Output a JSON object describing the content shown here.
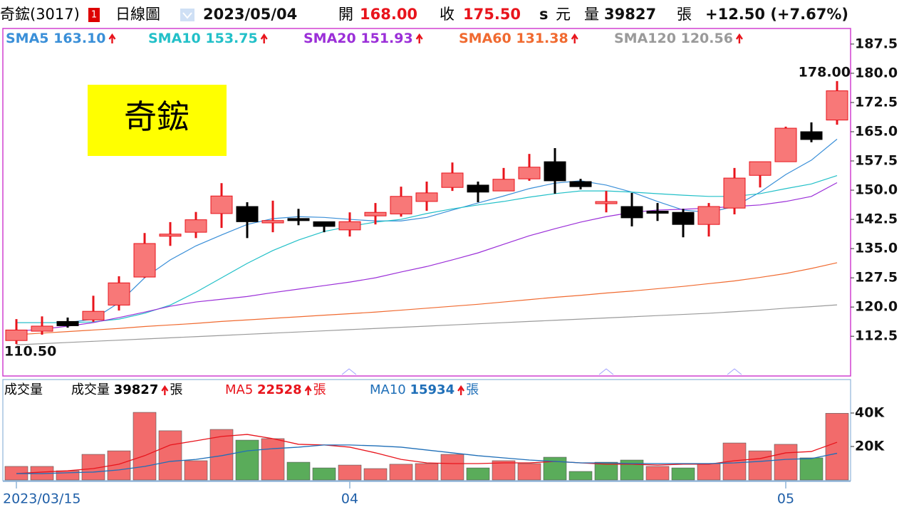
{
  "header": {
    "stock": "奇鋐(3017)",
    "badge": "1",
    "period": "日線圖",
    "date": "2023/05/04",
    "open_label": "開",
    "open": "168.00",
    "close_label": "收",
    "close": "175.50",
    "s": "s",
    "currency": "元",
    "volume_label": "量",
    "volume": "39827",
    "volume_unit": "張",
    "change": "+12.50 (+7.67%)"
  },
  "chart_data": [
    {
      "type": "candlestick",
      "stock_label": "奇鋐",
      "open": [
        111.4,
        113.8,
        116.3,
        116.7,
        120.5,
        127.7,
        138.3,
        139.2,
        144.0,
        145.8,
        141.6,
        142.5,
        141.9,
        139.8,
        143.4,
        143.9,
        147.1,
        150.7,
        151.3,
        149.8,
        152.9,
        157.3,
        152.2,
        146.7,
        145.8,
        144.4,
        144.3,
        141.2,
        145.4,
        153.8,
        157.3,
        165.0,
        168.0
      ],
      "high": [
        116.9,
        117.6,
        117.3,
        122.9,
        127.9,
        139.0,
        141.8,
        144.4,
        151.8,
        146.9,
        147.3,
        145.2,
        141.9,
        144.3,
        146.7,
        150.9,
        152.2,
        157.1,
        152.2,
        155.7,
        159.3,
        160.8,
        152.9,
        149.8,
        149.3,
        146.7,
        145.2,
        146.7,
        155.7,
        157.3,
        166.3,
        167.4,
        178.0
      ],
      "low": [
        110.5,
        112.9,
        114.7,
        116.2,
        119.1,
        127.5,
        135.7,
        137.7,
        140.3,
        137.7,
        139.2,
        141.0,
        139.2,
        138.1,
        141.2,
        143.2,
        144.7,
        149.8,
        146.9,
        149.8,
        152.4,
        149.1,
        150.2,
        144.3,
        140.7,
        142.1,
        137.9,
        138.1,
        143.8,
        150.7,
        157.3,
        162.3,
        166.8
      ],
      "close": [
        114.1,
        115.1,
        115.2,
        118.9,
        126.2,
        136.3,
        138.6,
        142.4,
        148.5,
        141.9,
        142.2,
        142.4,
        140.7,
        141.9,
        144.3,
        148.4,
        149.3,
        154.4,
        149.5,
        152.8,
        155.9,
        152.4,
        150.9,
        146.9,
        142.9,
        144.3,
        141.2,
        145.8,
        153.1,
        157.3,
        165.9,
        163.0,
        175.5
      ],
      "up_color": "#f87878",
      "up_edge": "#e8141c",
      "down_color": "#000000",
      "series": [
        {
          "name": "SMA5",
          "color": "#3a8fd8",
          "last_label": "163.10",
          "values": [
            116.0,
            116.0,
            116.0,
            116.9,
            121.1,
            127.5,
            132.1,
            135.7,
            138.5,
            141.2,
            142.7,
            143.2,
            143.0,
            142.5,
            142.1,
            142.1,
            143.0,
            144.9,
            146.7,
            148.5,
            150.4,
            151.8,
            152.4,
            151.3,
            149.5,
            147.1,
            144.9,
            144.3,
            145.8,
            149.5,
            154.0,
            157.7,
            163.1
          ]
        },
        {
          "name": "SMA10",
          "color": "#22c0c8",
          "last_label": "153.75",
          "values": [
            116.0,
            116.0,
            116.0,
            116.2,
            116.9,
            118.4,
            120.5,
            123.8,
            127.5,
            131.2,
            134.5,
            137.2,
            139.4,
            140.7,
            141.8,
            142.5,
            144.0,
            145.2,
            146.2,
            147.1,
            148.2,
            149.1,
            149.8,
            149.8,
            149.5,
            149.1,
            148.7,
            148.4,
            148.4,
            149.1,
            150.4,
            151.6,
            153.75
          ]
        },
        {
          "name": "SMA20",
          "color": "#9b2fd8",
          "last_label": "151.93",
          "values": [
            113.8,
            114.3,
            115.1,
            116.0,
            117.3,
            118.7,
            120.2,
            121.3,
            122.0,
            122.7,
            123.7,
            124.6,
            125.5,
            126.4,
            127.5,
            129.0,
            130.4,
            132.1,
            133.9,
            136.1,
            138.3,
            140.1,
            141.8,
            143.2,
            144.3,
            144.9,
            145.1,
            145.4,
            145.8,
            146.2,
            147.1,
            148.4,
            151.93
          ]
        },
        {
          "name": "SMA60",
          "color": "#f06a30",
          "last_label": "131.38",
          "values": [
            112.9,
            113.3,
            113.7,
            114.1,
            114.5,
            115.0,
            115.4,
            115.8,
            116.3,
            116.7,
            117.1,
            117.5,
            117.9,
            118.3,
            118.7,
            119.2,
            119.7,
            120.2,
            120.7,
            121.3,
            121.9,
            122.5,
            123.0,
            123.6,
            124.1,
            124.7,
            125.3,
            126.0,
            126.7,
            127.6,
            128.6,
            129.9,
            131.38
          ]
        },
        {
          "name": "SMA120",
          "color": "#9a9a9a",
          "last_label": "120.56",
          "values": [
            110.3,
            110.6,
            110.9,
            111.2,
            111.5,
            111.8,
            112.1,
            112.4,
            112.7,
            113.0,
            113.3,
            113.6,
            113.9,
            114.2,
            114.5,
            114.8,
            115.1,
            115.4,
            115.7,
            116.0,
            116.3,
            116.6,
            116.9,
            117.2,
            117.5,
            117.8,
            118.1,
            118.4,
            118.8,
            119.2,
            119.7,
            120.1,
            120.56
          ]
        }
      ],
      "ylim": [
        102.3,
        191.5
      ],
      "yticks": [
        187.5,
        {
          "value": 180,
          "label": "180.0"
        },
        172.5,
        {
          "value": 165,
          "label": "165.0"
        },
        157.5,
        {
          "value": 150,
          "label": "150.0"
        },
        142.5,
        {
          "value": 135,
          "label": "135.0"
        },
        127.5,
        {
          "value": 120,
          "label": "120.0"
        },
        112.5
      ],
      "annotations": [
        {
          "label": "178.00",
          "value": 178.0
        },
        {
          "label": "110.50",
          "value": 110.5
        }
      ]
    },
    {
      "type": "bar",
      "title": "成交量",
      "unit": "張",
      "categories": [
        "2023/03/15",
        null,
        null,
        null,
        null,
        null,
        null,
        null,
        null,
        null,
        null,
        null,
        null,
        "04",
        null,
        null,
        null,
        null,
        null,
        null,
        null,
        null,
        null,
        null,
        null,
        null,
        null,
        null,
        null,
        null,
        "05",
        null,
        null
      ],
      "series": [
        {
          "name": "成交量",
          "type": "bar",
          "values": [
            8100,
            8100,
            5500,
            15300,
            17400,
            40400,
            29400,
            11500,
            30200,
            23800,
            24700,
            10600,
            7200,
            8900,
            6800,
            9400,
            9800,
            15300,
            7200,
            11500,
            9800,
            13600,
            5100,
            10600,
            11900,
            8100,
            7200,
            9800,
            22100,
            17400,
            21300,
            13200,
            39827
          ],
          "colors": [
            "#f26b6b",
            "#f26b6b",
            "#f26b6b",
            "#f26b6b",
            "#f26b6b",
            "#f26b6b",
            "#f26b6b",
            "#f26b6b",
            "#f26b6b",
            "#5aac5a",
            "#f26b6b",
            "#5aac5a",
            "#5aac5a",
            "#f26b6b",
            "#f26b6b",
            "#f26b6b",
            "#f26b6b",
            "#f26b6b",
            "#5aac5a",
            "#f26b6b",
            "#f26b6b",
            "#5aac5a",
            "#5aac5a",
            "#5aac5a",
            "#5aac5a",
            "#f26b6b",
            "#5aac5a",
            "#f26b6b",
            "#f26b6b",
            "#f26b6b",
            "#f26b6b",
            "#5aac5a",
            "#f26b6b"
          ]
        },
        {
          "name": "MA5",
          "type": "line",
          "color": "#e8141c",
          "values": [
            3800,
            4700,
            5500,
            6800,
            9400,
            14500,
            20900,
            23400,
            26000,
            27200,
            24700,
            21300,
            20900,
            19600,
            16200,
            12300,
            10200,
            9800,
            9800,
            10200,
            10200,
            11100,
            10200,
            9400,
            9400,
            8900,
            9400,
            9400,
            11500,
            12800,
            16200,
            17000,
            22528
          ]
        },
        {
          "name": "MA10",
          "type": "line",
          "color": "#1f6fb8",
          "values": [
            3800,
            3800,
            4300,
            4700,
            6000,
            8100,
            11100,
            12300,
            14500,
            17400,
            18700,
            19600,
            20900,
            20900,
            20400,
            19600,
            17900,
            16200,
            14500,
            13200,
            11900,
            11100,
            10200,
            10200,
            9800,
            9800,
            9800,
            9800,
            10200,
            11100,
            12300,
            12800,
            15934
          ]
        }
      ],
      "ylim": [
        0,
        60000
      ],
      "yticks": [
        {
          "value": 40000,
          "label": "40K"
        },
        {
          "value": 20000,
          "label": "20K"
        }
      ]
    }
  ]
}
